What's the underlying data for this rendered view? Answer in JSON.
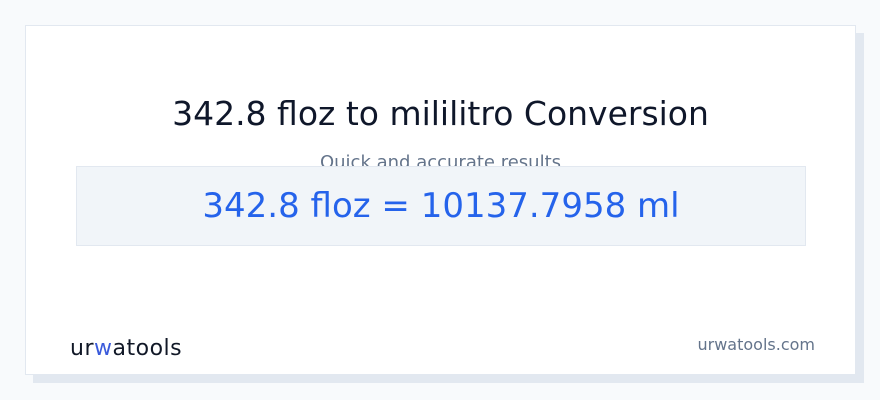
{
  "header": {
    "title": "342.8 floz to mililitro Conversion",
    "subtitle": "Quick and accurate results"
  },
  "result": {
    "text": "342.8 floz = 10137.7958 ml"
  },
  "footer": {
    "logo_text": "urwatools",
    "logo_prefix": "ur",
    "logo_accent": "w",
    "logo_suffix": "atools",
    "site": "urwatools.com"
  },
  "colors": {
    "accent": "#2563eb",
    "background": "#f8fafc",
    "result_bg": "#f1f5f9"
  }
}
